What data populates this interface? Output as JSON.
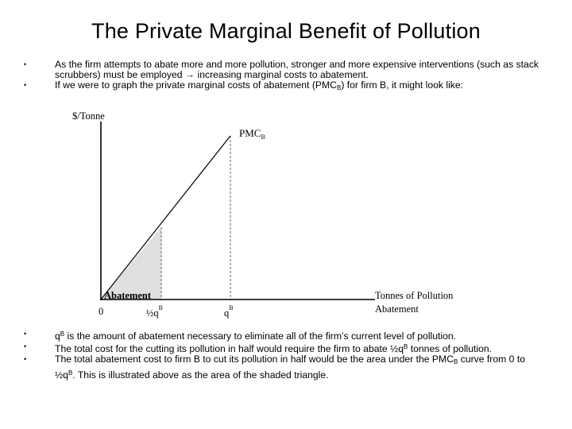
{
  "slide": {
    "title": "The Private Marginal Benefit of Pollution"
  },
  "top_bullets": [
    {
      "text": "As the firm attempts to abate more and more pollution, stronger and more expensive interventions (such as stack scrubbers) must be employed → increasing marginal costs to abatement."
    },
    {
      "text_pre": "If we were to graph the private marginal costs of abatement (PMC",
      "sub": "B",
      "text_post": ") for firm B, it might look like:"
    }
  ],
  "diagram": {
    "y_axis_label": "$/Tonne",
    "curve_label": "PMC",
    "curve_label_sub": "B",
    "shaded_label": "Abatement",
    "x_axis_label_line1": "Tonnes of Pollution",
    "x_axis_label_line2": "Abatement",
    "tick_zero": "0",
    "tick_half": "½q",
    "tick_half_sup": "B",
    "tick_full": "q",
    "tick_full_sup": "B",
    "colors": {
      "shade": "#e0e0e0",
      "line": "#000000",
      "dashed": "#666666"
    }
  },
  "bottom_bullets": [
    {
      "pre": "q",
      "sup": "B",
      "post": " is the amount of abatement necessary to eliminate all of the firm’s current level of pollution."
    },
    {
      "pre": "The total cost for the cutting its pollution in half would require the firm to abate ½q",
      "sup": "B",
      "post": " tonnes of pollution."
    },
    {
      "pre": "The total abatement cost to firm B to cut its pollution in half would be the area under the PMC",
      "sub": "B",
      "mid": " curve from 0 to ½q",
      "sup": "B",
      "post": ". This is illustrated above as the area of the shaded triangle."
    }
  ]
}
